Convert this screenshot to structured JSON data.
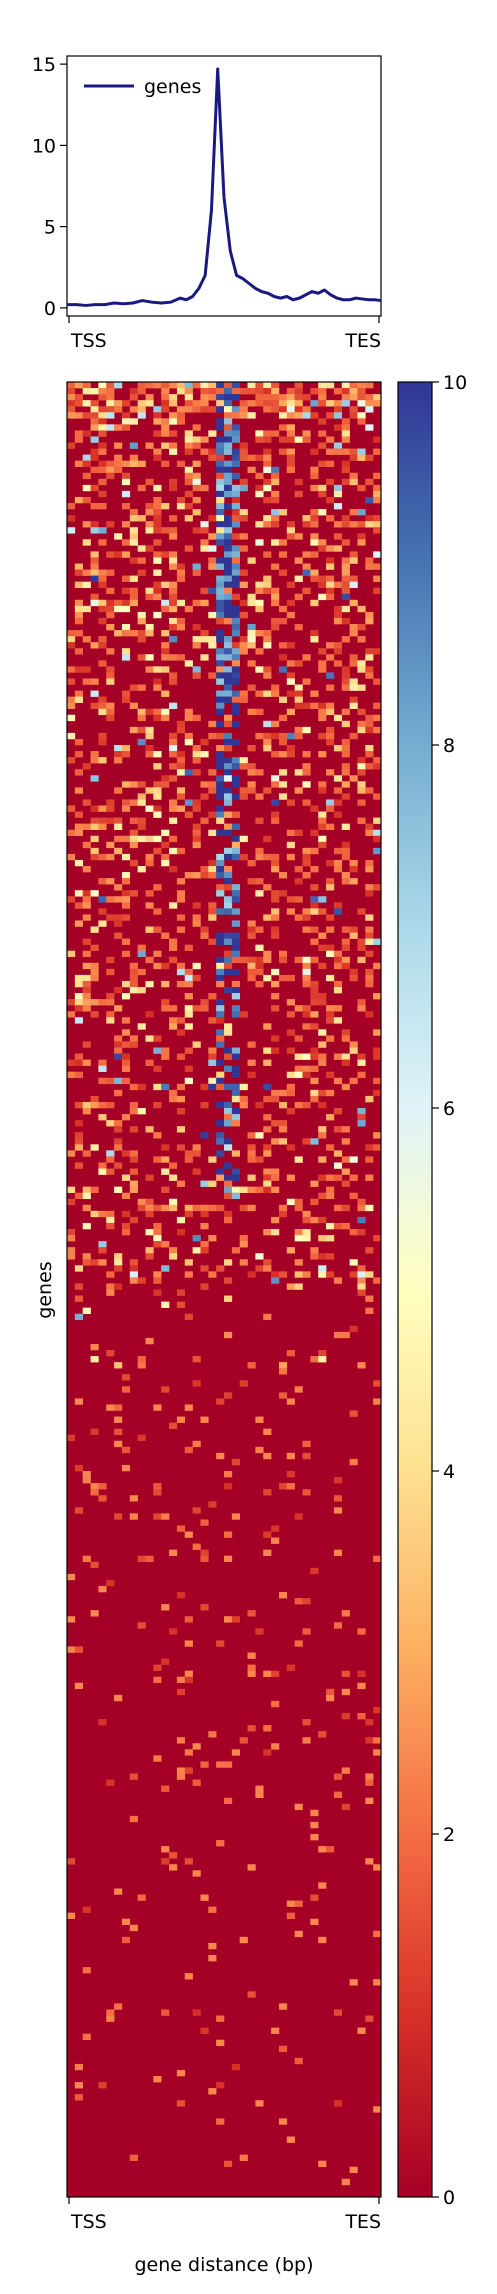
{
  "chart_data": [
    {
      "type": "line",
      "legend": "genes",
      "legend_placement": "top-left",
      "xtick_labels": [
        "TSS",
        "TES"
      ],
      "yticks": [
        0,
        5,
        10,
        15
      ],
      "ytick_labels": [
        "0",
        "5",
        "10",
        "15"
      ],
      "ylim": [
        -0.5,
        15.5
      ],
      "grid": false,
      "series": [
        {
          "name": "genes",
          "color": "#191a80",
          "x": [
            0,
            0.03,
            0.06,
            0.09,
            0.12,
            0.15,
            0.18,
            0.21,
            0.24,
            0.27,
            0.3,
            0.33,
            0.36,
            0.38,
            0.4,
            0.42,
            0.44,
            0.46,
            0.48,
            0.5,
            0.52,
            0.54,
            0.56,
            0.58,
            0.6,
            0.62,
            0.64,
            0.66,
            0.68,
            0.7,
            0.72,
            0.74,
            0.76,
            0.78,
            0.8,
            0.82,
            0.84,
            0.86,
            0.88,
            0.9,
            0.92,
            0.94,
            0.96,
            0.98,
            1.0
          ],
          "values": [
            0.2,
            0.2,
            0.15,
            0.2,
            0.2,
            0.3,
            0.25,
            0.3,
            0.45,
            0.35,
            0.3,
            0.35,
            0.6,
            0.5,
            0.7,
            1.2,
            2.0,
            6.0,
            14.7,
            6.8,
            3.5,
            2.0,
            1.8,
            1.5,
            1.2,
            1.0,
            0.9,
            0.7,
            0.6,
            0.7,
            0.5,
            0.6,
            0.8,
            1.0,
            0.9,
            1.1,
            0.8,
            0.6,
            0.5,
            0.5,
            0.6,
            0.55,
            0.5,
            0.5,
            0.45
          ]
        }
      ]
    },
    {
      "type": "heatmap",
      "ylabel": "genes",
      "xlabel": "gene distance (bp)",
      "xtick_labels": [
        "TSS",
        "TES"
      ],
      "colormap": "RdYlBu",
      "colormap_stops": [
        "#a50026",
        "#d73027",
        "#f46d43",
        "#fdae61",
        "#fee090",
        "#ffffbf",
        "#e0f3f8",
        "#abd9e9",
        "#74add1",
        "#4575b4",
        "#313695"
      ],
      "colorbar_range": [
        0,
        10
      ],
      "colorbar_ticks": [
        0,
        2,
        4,
        6,
        8,
        10
      ],
      "colorbar_tick_labels": [
        "0",
        "2",
        "4",
        "6",
        "8",
        "10"
      ],
      "heatmap_columns": 40,
      "heatmap_rows": 300,
      "row_sort": "descending mean signal",
      "peak_column_range": [
        19,
        21
      ],
      "note": "per-cell values in the image are not individually readable; the matrix is approximated from the visible pattern (dense signal at the top rows and around the central peak, sparse low values below)"
    }
  ]
}
